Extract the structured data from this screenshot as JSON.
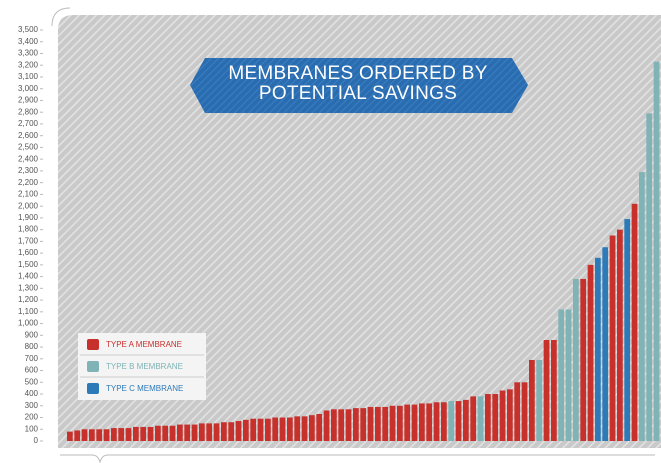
{
  "chart_data": {
    "type": "bar",
    "title": "MEMBRANES ORDERED BY POTENTIAL SAVINGS",
    "ylim": [
      0,
      3500
    ],
    "yticks": [
      0,
      100,
      200,
      300,
      400,
      500,
      600,
      700,
      800,
      900,
      {
        "value": 1000,
        "label": "1,000"
      },
      {
        "value": 1100,
        "label": "1,100"
      },
      {
        "value": 1200,
        "label": "1,200"
      },
      {
        "value": 1300,
        "label": "1,300"
      },
      {
        "value": 1400,
        "label": "1,400"
      },
      {
        "value": 1500,
        "label": "1,500"
      },
      {
        "value": 1600,
        "label": "1,600"
      },
      {
        "value": 1700,
        "label": "1,700"
      },
      {
        "value": 1800,
        "label": "1,800"
      },
      {
        "value": 1900,
        "label": "1,900"
      },
      {
        "value": 2000,
        "label": "2,000"
      },
      {
        "value": 2100,
        "label": "2,100"
      },
      {
        "value": 2200,
        "label": "2,200"
      },
      {
        "value": 2300,
        "label": "2,300"
      },
      {
        "value": 2400,
        "label": "2,400"
      },
      {
        "value": 2500,
        "label": "2,500"
      },
      {
        "value": 2600,
        "label": "2,600"
      },
      {
        "value": 2700,
        "label": "2,700"
      },
      {
        "value": 2800,
        "label": "2,800"
      },
      {
        "value": 2900,
        "label": "2,900"
      },
      {
        "value": 3000,
        "label": "3,000"
      },
      {
        "value": 3100,
        "label": "3,100"
      },
      {
        "value": 3200,
        "label": "3,200"
      },
      {
        "value": 3300,
        "label": "3,300"
      },
      {
        "value": 3400,
        "label": "3,400"
      },
      {
        "value": 3500,
        "label": "3,500"
      }
    ],
    "series": [
      {
        "name": "TYPE A MEMBRANE",
        "color": "#c8302c",
        "values": [
          80,
          90,
          100,
          100,
          100,
          100,
          110,
          110,
          110,
          120,
          120,
          120,
          130,
          130,
          130,
          140,
          140,
          140,
          150,
          150,
          150,
          160,
          160,
          170,
          180,
          190,
          190,
          190,
          200,
          200,
          200,
          210,
          210,
          220,
          230,
          260,
          270,
          270,
          270,
          280,
          280,
          290,
          290,
          290,
          300,
          300,
          310,
          310,
          320,
          320,
          330,
          330,
          null,
          340,
          350,
          380,
          null,
          400,
          400,
          430,
          440,
          500,
          500,
          690,
          null,
          860,
          860,
          null,
          null,
          null,
          1380,
          1500,
          null,
          null,
          1750,
          1800,
          null,
          2020,
          null,
          null,
          null
        ]
      },
      {
        "name": "TYPE B MEMBRANE",
        "color": "#7fb3b5",
        "values": [
          null,
          null,
          null,
          null,
          null,
          null,
          null,
          null,
          null,
          null,
          null,
          null,
          null,
          null,
          null,
          null,
          null,
          null,
          null,
          null,
          null,
          null,
          null,
          null,
          null,
          null,
          null,
          null,
          null,
          null,
          null,
          null,
          null,
          null,
          null,
          null,
          null,
          null,
          null,
          null,
          null,
          null,
          null,
          null,
          null,
          null,
          null,
          null,
          null,
          null,
          null,
          null,
          340,
          null,
          null,
          null,
          380,
          null,
          null,
          null,
          null,
          null,
          null,
          null,
          690,
          null,
          null,
          1120,
          1120,
          1380,
          null,
          null,
          null,
          null,
          null,
          null,
          null,
          null,
          2290,
          2790,
          3230
        ]
      },
      {
        "name": "TYPE C MEMBRANE",
        "color": "#2d7ab8",
        "values": [
          null,
          null,
          null,
          null,
          null,
          null,
          null,
          null,
          null,
          null,
          null,
          null,
          null,
          null,
          null,
          null,
          null,
          null,
          null,
          null,
          null,
          null,
          null,
          null,
          null,
          null,
          null,
          null,
          null,
          null,
          null,
          null,
          null,
          null,
          null,
          null,
          null,
          null,
          null,
          null,
          null,
          null,
          null,
          null,
          null,
          null,
          null,
          null,
          null,
          null,
          null,
          null,
          null,
          null,
          null,
          null,
          null,
          null,
          null,
          null,
          null,
          null,
          null,
          null,
          null,
          null,
          null,
          null,
          null,
          null,
          null,
          null,
          1560,
          1650,
          null,
          null,
          1890,
          null,
          null,
          null,
          null
        ]
      }
    ]
  }
}
